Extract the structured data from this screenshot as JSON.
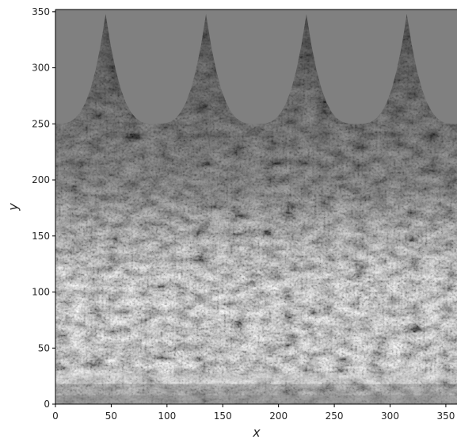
{
  "chart_data": {
    "type": "heatmap",
    "title": "",
    "xlabel": "x",
    "ylabel": "y",
    "xlim": [
      0,
      360
    ],
    "ylim": [
      0,
      352
    ],
    "x_ticks": [
      0,
      50,
      100,
      150,
      200,
      250,
      300,
      350
    ],
    "y_ticks": [
      0,
      50,
      100,
      150,
      200,
      250,
      300,
      350
    ],
    "x_tick_labels": [
      "0",
      "50",
      "100",
      "150",
      "200",
      "250",
      "300",
      "350"
    ],
    "y_tick_labels": [
      "0",
      "50",
      "100",
      "150",
      "200",
      "250",
      "300",
      "350"
    ],
    "colormap": "grayscale",
    "background_color": "#808080",
    "grid": false,
    "cusp_boundary": {
      "cusp_x": [
        45,
        135,
        225,
        315
      ],
      "cusp_peak_y": 348,
      "trough_x": [
        0,
        90,
        180,
        270,
        360
      ],
      "trough_y": 250
    }
  }
}
